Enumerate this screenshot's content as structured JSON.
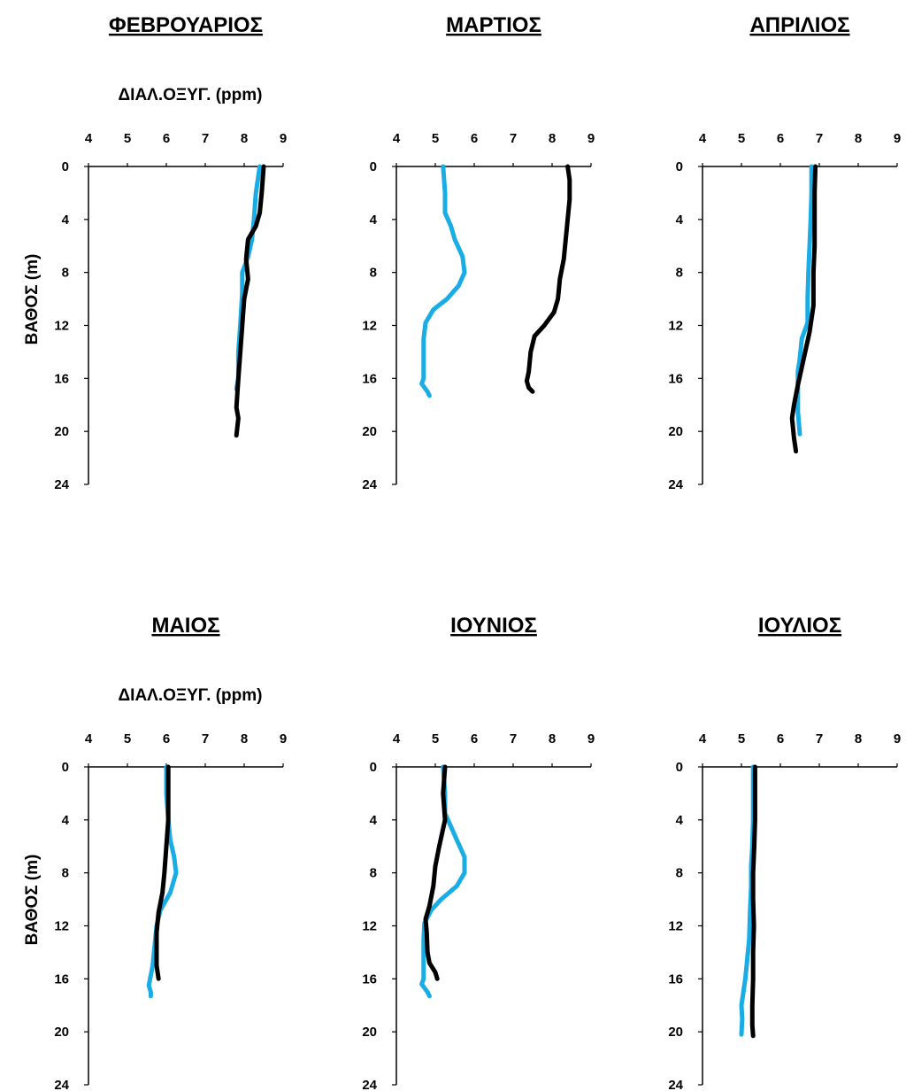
{
  "figure": {
    "xlabel": "ΔΙΑΛ.ΟΞΥΓ. (ppm)",
    "ylabel": "ΒΑΘΟΣ (m)",
    "series_colors": {
      "blue": "#1aace4",
      "black": "#000000"
    }
  },
  "chart_data": [
    {
      "type": "line",
      "title": "ΦΕΒΡΟΥΑΡΙΟΣ",
      "xlim": [
        4,
        9
      ],
      "ylim": [
        24,
        0
      ],
      "xticks": [
        4,
        5,
        6,
        7,
        8,
        9
      ],
      "yticks": [
        0,
        4,
        8,
        12,
        16,
        20,
        24
      ],
      "show_xlabel": true,
      "show_ylabel": true,
      "series": [
        {
          "color": "#1aace4",
          "points": [
            [
              8.4,
              0
            ],
            [
              8.3,
              2
            ],
            [
              8.25,
              4
            ],
            [
              8.2,
              5.5
            ],
            [
              8.1,
              6.8
            ],
            [
              7.95,
              8
            ],
            [
              7.95,
              9.5
            ],
            [
              7.9,
              12
            ],
            [
              7.85,
              14
            ],
            [
              7.85,
              16
            ],
            [
              7.8,
              16.8
            ]
          ]
        },
        {
          "color": "#000000",
          "points": [
            [
              8.5,
              0
            ],
            [
              8.45,
              2
            ],
            [
              8.4,
              3.5
            ],
            [
              8.3,
              4.5
            ],
            [
              8.1,
              5.5
            ],
            [
              8.05,
              7
            ],
            [
              8.1,
              8.5
            ],
            [
              8.0,
              10
            ],
            [
              7.95,
              12
            ],
            [
              7.9,
              14
            ],
            [
              7.85,
              16
            ],
            [
              7.8,
              18.2
            ],
            [
              7.85,
              19
            ],
            [
              7.8,
              20.3
            ]
          ]
        }
      ]
    },
    {
      "type": "line",
      "title": "ΜΑΡΤΙΟΣ",
      "xlim": [
        4,
        9
      ],
      "ylim": [
        24,
        0
      ],
      "xticks": [
        4,
        5,
        6,
        7,
        8,
        9
      ],
      "yticks": [
        0,
        4,
        8,
        12,
        16,
        20,
        24
      ],
      "show_xlabel": false,
      "show_ylabel": false,
      "series": [
        {
          "color": "#1aace4",
          "points": [
            [
              5.2,
              0
            ],
            [
              5.25,
              2
            ],
            [
              5.25,
              3.5
            ],
            [
              5.4,
              4.5
            ],
            [
              5.5,
              5.5
            ],
            [
              5.7,
              6.8
            ],
            [
              5.75,
              8
            ],
            [
              5.6,
              9
            ],
            [
              5.3,
              10
            ],
            [
              4.95,
              10.8
            ],
            [
              4.75,
              11.8
            ],
            [
              4.7,
              13
            ],
            [
              4.7,
              15
            ],
            [
              4.7,
              16
            ],
            [
              4.65,
              16.4
            ],
            [
              4.8,
              17
            ],
            [
              4.85,
              17.3
            ]
          ]
        },
        {
          "color": "#000000",
          "points": [
            [
              8.4,
              0
            ],
            [
              8.45,
              1
            ],
            [
              8.45,
              2.5
            ],
            [
              8.4,
              4
            ],
            [
              8.35,
              5.5
            ],
            [
              8.3,
              7
            ],
            [
              8.2,
              8.5
            ],
            [
              8.15,
              10
            ],
            [
              8.05,
              11
            ],
            [
              7.8,
              12
            ],
            [
              7.55,
              12.8
            ],
            [
              7.45,
              14
            ],
            [
              7.4,
              15.5
            ],
            [
              7.35,
              16.2
            ],
            [
              7.4,
              16.7
            ],
            [
              7.5,
              17
            ]
          ]
        }
      ]
    },
    {
      "type": "line",
      "title": "ΑΠΡΙΛΙΟΣ",
      "xlim": [
        4,
        9
      ],
      "ylim": [
        24,
        0
      ],
      "xticks": [
        4,
        5,
        6,
        7,
        8,
        9
      ],
      "yticks": [
        0,
        4,
        8,
        12,
        16,
        20,
        24
      ],
      "show_xlabel": false,
      "show_ylabel": false,
      "series": [
        {
          "color": "#1aace4",
          "points": [
            [
              6.8,
              0
            ],
            [
              6.8,
              2
            ],
            [
              6.78,
              4
            ],
            [
              6.75,
              6
            ],
            [
              6.72,
              8
            ],
            [
              6.7,
              10
            ],
            [
              6.7,
              11.8
            ],
            [
              6.55,
              13
            ],
            [
              6.5,
              14.5
            ],
            [
              6.45,
              15.5
            ],
            [
              6.45,
              17
            ],
            [
              6.45,
              18.5
            ],
            [
              6.5,
              20.2
            ]
          ]
        },
        {
          "color": "#000000",
          "points": [
            [
              6.9,
              0
            ],
            [
              6.88,
              2
            ],
            [
              6.88,
              4
            ],
            [
              6.88,
              6
            ],
            [
              6.85,
              8
            ],
            [
              6.85,
              10.5
            ],
            [
              6.75,
              12.5
            ],
            [
              6.6,
              14.5
            ],
            [
              6.45,
              16.5
            ],
            [
              6.35,
              18
            ],
            [
              6.3,
              19
            ],
            [
              6.35,
              20.5
            ],
            [
              6.4,
              21.5
            ]
          ]
        }
      ]
    },
    {
      "type": "line",
      "title": "ΜΑΙΟΣ",
      "xlim": [
        4,
        9
      ],
      "ylim": [
        24,
        0
      ],
      "xticks": [
        4,
        5,
        6,
        7,
        8,
        9
      ],
      "yticks": [
        0,
        4,
        8,
        12,
        16,
        20,
        24
      ],
      "show_xlabel": true,
      "show_ylabel": true,
      "series": [
        {
          "color": "#1aace4",
          "points": [
            [
              6.0,
              0
            ],
            [
              6.0,
              2
            ],
            [
              6.05,
              4
            ],
            [
              6.1,
              5.5
            ],
            [
              6.2,
              6.8
            ],
            [
              6.25,
              8
            ],
            [
              6.1,
              9.5
            ],
            [
              5.85,
              10.8
            ],
            [
              5.75,
              12
            ],
            [
              5.7,
              13.5
            ],
            [
              5.65,
              15
            ],
            [
              5.55,
              16.5
            ],
            [
              5.6,
              17
            ],
            [
              5.6,
              17.3
            ]
          ]
        },
        {
          "color": "#000000",
          "points": [
            [
              6.05,
              0
            ],
            [
              6.05,
              2
            ],
            [
              6.05,
              4
            ],
            [
              6.0,
              6
            ],
            [
              5.95,
              8
            ],
            [
              5.9,
              9.5
            ],
            [
              5.8,
              11
            ],
            [
              5.75,
              12.5
            ],
            [
              5.75,
              14
            ],
            [
              5.75,
              15
            ],
            [
              5.8,
              16
            ]
          ]
        }
      ]
    },
    {
      "type": "line",
      "title": "ΙΟΥΝΙΟΣ",
      "xlim": [
        4,
        9
      ],
      "ylim": [
        24,
        0
      ],
      "xticks": [
        4,
        5,
        6,
        7,
        8,
        9
      ],
      "yticks": [
        0,
        4,
        8,
        12,
        16,
        20,
        24
      ],
      "show_xlabel": false,
      "show_ylabel": false,
      "series": [
        {
          "color": "#1aace4",
          "points": [
            [
              5.2,
              0
            ],
            [
              5.25,
              2
            ],
            [
              5.25,
              3.5
            ],
            [
              5.4,
              4.5
            ],
            [
              5.55,
              5.5
            ],
            [
              5.75,
              6.8
            ],
            [
              5.75,
              8
            ],
            [
              5.55,
              9
            ],
            [
              5.15,
              10
            ],
            [
              4.9,
              10.8
            ],
            [
              4.72,
              11.8
            ],
            [
              4.7,
              13
            ],
            [
              4.7,
              15
            ],
            [
              4.7,
              16
            ],
            [
              4.65,
              16.4
            ],
            [
              4.8,
              17
            ],
            [
              4.85,
              17.3
            ]
          ]
        },
        {
          "color": "#000000",
          "points": [
            [
              5.25,
              0
            ],
            [
              5.2,
              2
            ],
            [
              5.25,
              4
            ],
            [
              5.1,
              6
            ],
            [
              5.0,
              7.5
            ],
            [
              4.95,
              9
            ],
            [
              4.85,
              10.5
            ],
            [
              4.75,
              11.5
            ],
            [
              4.78,
              12.5
            ],
            [
              4.8,
              14
            ],
            [
              4.85,
              14.8
            ],
            [
              5.0,
              15.5
            ],
            [
              5.05,
              16
            ]
          ]
        }
      ]
    },
    {
      "type": "line",
      "title": "ΙΟΥΛΙΟΣ",
      "xlim": [
        4,
        9
      ],
      "ylim": [
        24,
        0
      ],
      "xticks": [
        4,
        5,
        6,
        7,
        8,
        9
      ],
      "yticks": [
        0,
        4,
        8,
        12,
        16,
        20,
        24
      ],
      "show_xlabel": false,
      "show_ylabel": false,
      "series": [
        {
          "color": "#1aace4",
          "points": [
            [
              5.3,
              0
            ],
            [
              5.3,
              2
            ],
            [
              5.3,
              4
            ],
            [
              5.28,
              6
            ],
            [
              5.25,
              7.5
            ],
            [
              5.25,
              9
            ],
            [
              5.22,
              11
            ],
            [
              5.2,
              13
            ],
            [
              5.15,
              14.5
            ],
            [
              5.1,
              16
            ],
            [
              5.05,
              17
            ],
            [
              5.0,
              18
            ],
            [
              5.02,
              19
            ],
            [
              5.0,
              20.2
            ]
          ]
        },
        {
          "color": "#000000",
          "points": [
            [
              5.35,
              0
            ],
            [
              5.35,
              2
            ],
            [
              5.35,
              4
            ],
            [
              5.33,
              6
            ],
            [
              5.3,
              8
            ],
            [
              5.3,
              10
            ],
            [
              5.32,
              12
            ],
            [
              5.3,
              14
            ],
            [
              5.3,
              16
            ],
            [
              5.28,
              18
            ],
            [
              5.28,
              19.5
            ],
            [
              5.3,
              20.3
            ]
          ]
        }
      ]
    }
  ]
}
